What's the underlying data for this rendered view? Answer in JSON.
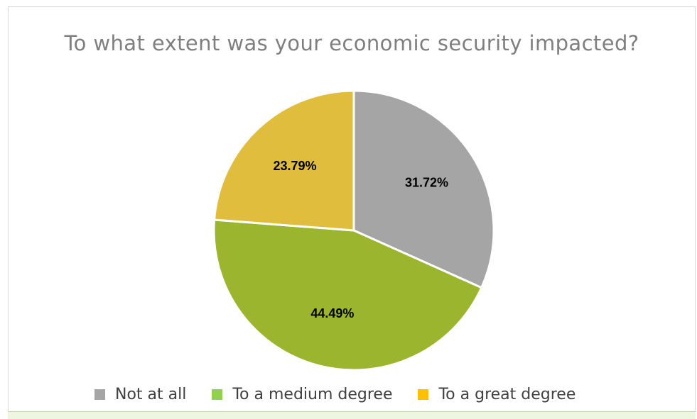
{
  "chart_data": {
    "type": "pie",
    "title": "To what extent was your economic security impacted?",
    "categories": [
      "Not at all",
      "To a medium degree",
      "To a great degree"
    ],
    "values": [
      31.72,
      44.49,
      23.79
    ],
    "labels": [
      "31.72%",
      "44.49%",
      "23.79%"
    ],
    "colors": [
      "#a5a5a5",
      "#9bb52e",
      "#e1bd3d"
    ],
    "legend_colors": [
      "#a5a5a5",
      "#92d050",
      "#ffc000"
    ],
    "legend_position": "bottom",
    "start_angle_deg": 0,
    "direction": "clockwise"
  }
}
